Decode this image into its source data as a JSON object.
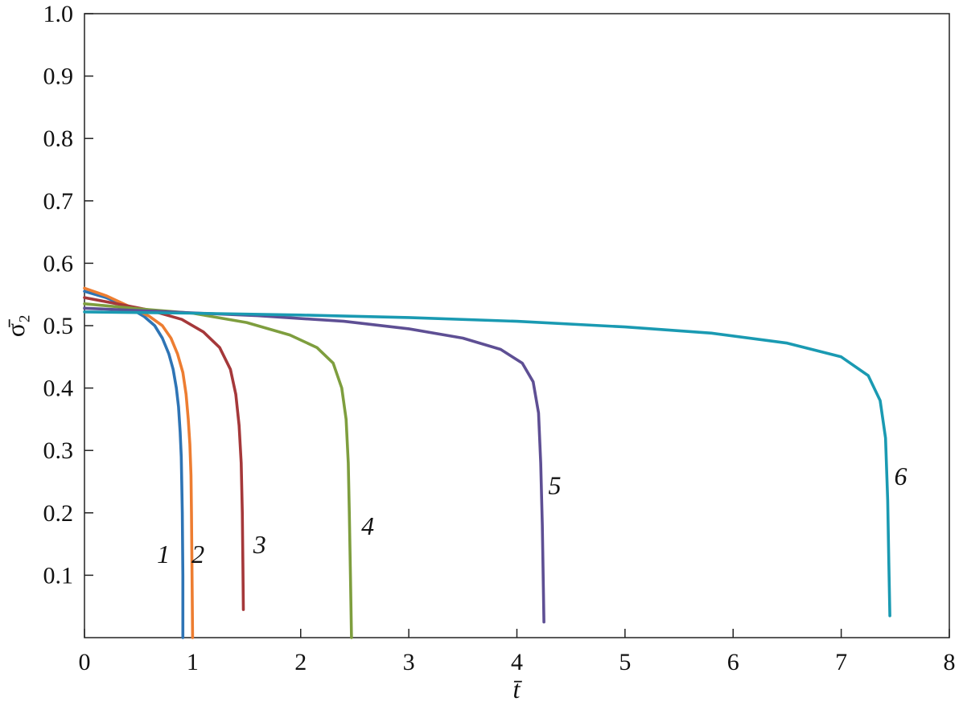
{
  "chart_data": {
    "type": "line",
    "xlabel": "t̄",
    "ylabel": "σ̄₂",
    "xlim": [
      0,
      8
    ],
    "ylim": [
      0,
      1.0
    ],
    "xticks": [
      0,
      1,
      2,
      3,
      4,
      5,
      6,
      7,
      8
    ],
    "xtick_labels": [
      "0",
      "1",
      "2",
      "3",
      "4",
      "5",
      "6",
      "7",
      "8"
    ],
    "yticks": [
      0.1,
      0.2,
      0.3,
      0.4,
      0.5,
      0.6,
      0.7,
      0.8,
      0.9,
      1.0
    ],
    "ytick_labels": [
      "0.1",
      "0.2",
      "0.3",
      "0.4",
      "0.5",
      "0.6",
      "0.7",
      "0.8",
      "0.9",
      "1.0"
    ],
    "grid": false,
    "series": [
      {
        "label": "1",
        "color": "#2E74B5",
        "label_at": [
          0.73,
          0.12
        ],
        "x": [
          0,
          0.2,
          0.4,
          0.55,
          0.65,
          0.72,
          0.78,
          0.82,
          0.85,
          0.87,
          0.885,
          0.895,
          0.9,
          0.905,
          0.91,
          0.91
        ],
        "y": [
          0.555,
          0.545,
          0.53,
          0.515,
          0.5,
          0.48,
          0.455,
          0.43,
          0.4,
          0.37,
          0.33,
          0.29,
          0.25,
          0.2,
          0.1,
          0.0
        ]
      },
      {
        "label": "2",
        "color": "#ED7D31",
        "label_at": [
          1.05,
          0.12
        ],
        "x": [
          0,
          0.2,
          0.4,
          0.6,
          0.72,
          0.8,
          0.86,
          0.91,
          0.94,
          0.96,
          0.975,
          0.985,
          0.99,
          0.995,
          1.0
        ],
        "y": [
          0.56,
          0.548,
          0.532,
          0.515,
          0.5,
          0.48,
          0.455,
          0.425,
          0.39,
          0.35,
          0.31,
          0.26,
          0.2,
          0.1,
          0.0
        ]
      },
      {
        "label": "3",
        "color": "#A5383A",
        "label_at": [
          1.62,
          0.135
        ],
        "x": [
          0,
          0.3,
          0.6,
          0.9,
          1.1,
          1.25,
          1.35,
          1.4,
          1.43,
          1.45,
          1.46,
          1.465,
          1.47
        ],
        "y": [
          0.545,
          0.535,
          0.525,
          0.51,
          0.49,
          0.465,
          0.43,
          0.39,
          0.34,
          0.28,
          0.2,
          0.12,
          0.045
        ]
      },
      {
        "label": "4",
        "color": "#7E9E3E",
        "label_at": [
          2.62,
          0.165
        ],
        "x": [
          0,
          0.5,
          1.0,
          1.5,
          1.9,
          2.15,
          2.3,
          2.38,
          2.42,
          2.44,
          2.45,
          2.46,
          2.47
        ],
        "y": [
          0.535,
          0.527,
          0.52,
          0.505,
          0.485,
          0.465,
          0.44,
          0.4,
          0.35,
          0.28,
          0.2,
          0.1,
          0.0
        ]
      },
      {
        "label": "5",
        "color": "#5E4F94",
        "label_at": [
          4.35,
          0.23
        ],
        "x": [
          0,
          0.8,
          1.6,
          2.4,
          3.0,
          3.5,
          3.85,
          4.05,
          4.15,
          4.2,
          4.22,
          4.235,
          4.245,
          4.25
        ],
        "y": [
          0.528,
          0.522,
          0.516,
          0.507,
          0.495,
          0.48,
          0.462,
          0.44,
          0.41,
          0.36,
          0.28,
          0.18,
          0.08,
          0.025
        ]
      },
      {
        "label": "6",
        "color": "#1A9AB2",
        "label_at": [
          7.55,
          0.245
        ],
        "x": [
          0,
          1.0,
          2.0,
          3.0,
          4.0,
          5.0,
          5.8,
          6.5,
          7.0,
          7.25,
          7.36,
          7.41,
          7.43,
          7.44,
          7.45
        ],
        "y": [
          0.522,
          0.52,
          0.517,
          0.513,
          0.507,
          0.498,
          0.488,
          0.472,
          0.45,
          0.42,
          0.38,
          0.32,
          0.22,
          0.12,
          0.035
        ]
      }
    ]
  }
}
